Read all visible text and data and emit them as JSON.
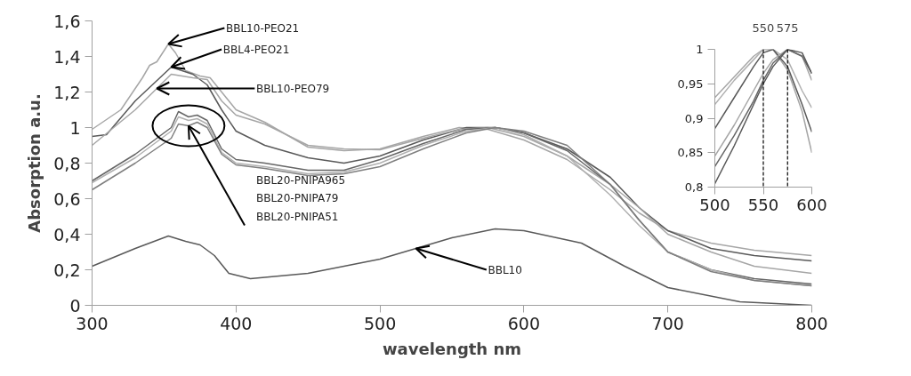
{
  "chart_data": [
    {
      "type": "line",
      "xlabel": "wavelength nm",
      "ylabel": "Absorption a.u.",
      "xlim": [
        300,
        800
      ],
      "ylim": [
        0,
        1.6
      ],
      "xticks": [
        300,
        400,
        500,
        600,
        700,
        800
      ],
      "yticks": [
        {
          "value": 0,
          "label": "0"
        },
        {
          "value": 0.2,
          "label": "0,2"
        },
        {
          "value": 0.4,
          "label": "0,4"
        },
        {
          "value": 0.6,
          "label": "0,6"
        },
        {
          "value": 0.8,
          "label": "0,8"
        },
        {
          "value": 1,
          "label": "1"
        },
        {
          "value": 1.2,
          "label": "1,2"
        },
        {
          "value": 1.4,
          "label": "1,4"
        },
        {
          "value": 1.6,
          "label": "1,6"
        }
      ],
      "grid": false,
      "marker": "none",
      "line_style": "solid",
      "series": [
        {
          "color": "#a6a6a6",
          "x": [
            300,
            320,
            335,
            340,
            345,
            353,
            358,
            365,
            375,
            382,
            390,
            400,
            420,
            450,
            475,
            500,
            530,
            555,
            575,
            600,
            630,
            660,
            680,
            700,
            730,
            760,
            800
          ],
          "values": [
            0.99,
            1.1,
            1.28,
            1.35,
            1.37,
            1.47,
            1.42,
            1.32,
            1.29,
            1.28,
            1.2,
            1.1,
            1.03,
            0.89,
            0.87,
            0.88,
            0.95,
            1.0,
            0.99,
            0.93,
            0.82,
            0.65,
            0.52,
            0.42,
            0.35,
            0.31,
            0.28
          ]
        },
        {
          "color": "#595959",
          "x": [
            300,
            310,
            330,
            355,
            370,
            380,
            390,
            400,
            420,
            450,
            475,
            500,
            530,
            560,
            580,
            600,
            630,
            660,
            680,
            700,
            730,
            760,
            800
          ],
          "values": [
            0.95,
            0.96,
            1.15,
            1.34,
            1.3,
            1.24,
            1.1,
            0.98,
            0.9,
            0.83,
            0.8,
            0.84,
            0.93,
            1.0,
            1.0,
            0.97,
            0.88,
            0.72,
            0.55,
            0.42,
            0.32,
            0.28,
            0.25
          ]
        },
        {
          "color": "#a6a6a6",
          "x": [
            300,
            330,
            355,
            370,
            380,
            390,
            400,
            420,
            450,
            475,
            500,
            530,
            555,
            575,
            600,
            630,
            660,
            680,
            700,
            730,
            760,
            800
          ],
          "values": [
            0.9,
            1.1,
            1.3,
            1.28,
            1.27,
            1.15,
            1.07,
            1.02,
            0.9,
            0.88,
            0.875,
            0.94,
            0.99,
            1.0,
            0.95,
            0.84,
            0.68,
            0.55,
            0.4,
            0.3,
            0.22,
            0.18
          ]
        },
        {
          "color": "#666666",
          "x": [
            300,
            330,
            355,
            360,
            367,
            373,
            380,
            390,
            400,
            410,
            420,
            450,
            475,
            500,
            530,
            560,
            580,
            600,
            630,
            660,
            680,
            700,
            730,
            760,
            800
          ],
          "values": [
            0.7,
            0.85,
            1.0,
            1.09,
            1.06,
            1.07,
            1.04,
            0.88,
            0.82,
            0.81,
            0.8,
            0.76,
            0.76,
            0.82,
            0.91,
            0.99,
            1.0,
            0.97,
            0.87,
            0.68,
            0.48,
            0.3,
            0.2,
            0.15,
            0.12
          ]
        },
        {
          "color": "#b0b0b0",
          "x": [
            300,
            330,
            355,
            360,
            367,
            373,
            380,
            390,
            400,
            410,
            420,
            450,
            475,
            500,
            530,
            560,
            580,
            600,
            630,
            660,
            680,
            700,
            730,
            760,
            800
          ],
          "values": [
            0.69,
            0.83,
            0.98,
            1.06,
            1.04,
            1.05,
            1.02,
            0.86,
            0.8,
            0.79,
            0.78,
            0.74,
            0.75,
            0.8,
            0.9,
            0.98,
            1.0,
            0.96,
            0.84,
            0.62,
            0.45,
            0.3,
            0.2,
            0.14,
            0.11
          ]
        },
        {
          "color": "#7f7f7f",
          "x": [
            300,
            330,
            355,
            360,
            367,
            373,
            380,
            390,
            400,
            410,
            420,
            450,
            475,
            500,
            530,
            560,
            580,
            600,
            630,
            660,
            680,
            700,
            730,
            760,
            800
          ],
          "values": [
            0.65,
            0.8,
            0.94,
            1.02,
            1.01,
            1.03,
            1.0,
            0.85,
            0.79,
            0.78,
            0.77,
            0.73,
            0.74,
            0.78,
            0.88,
            0.97,
            1.0,
            0.98,
            0.9,
            0.68,
            0.48,
            0.3,
            0.19,
            0.14,
            0.11
          ]
        },
        {
          "color": "#595959",
          "x": [
            300,
            330,
            353,
            365,
            375,
            385,
            395,
            410,
            450,
            500,
            550,
            580,
            600,
            640,
            670,
            700,
            750,
            800
          ],
          "values": [
            0.22,
            0.32,
            0.39,
            0.36,
            0.34,
            0.28,
            0.18,
            0.15,
            0.18,
            0.26,
            0.38,
            0.43,
            0.42,
            0.35,
            0.22,
            0.1,
            0.02,
            0.0
          ]
        }
      ],
      "annotations": [
        {
          "text": "BBL10-PEO21",
          "x": 353,
          "y": 1.47
        },
        {
          "text": "BBL4-PEO21",
          "x": 355,
          "y": 1.34
        },
        {
          "text": "BBL10-PEO79",
          "x": 345,
          "y": 1.22
        },
        {
          "text": "BBL20-PNIPA965\nBBL20-PNIPA79\nBBL20-PNIPA51",
          "x": 367,
          "y": 1.01
        },
        {
          "text": "BBL10",
          "x": 525,
          "y": 0.32
        }
      ]
    },
    {
      "type": "line",
      "xlim": [
        500,
        600
      ],
      "ylim": [
        0.8,
        1
      ],
      "xticks": [
        500,
        550,
        600
      ],
      "yticks": [
        {
          "value": 0.8,
          "label": "0,8"
        },
        {
          "value": 0.85,
          "label": "0,85"
        },
        {
          "value": 0.9,
          "label": "0,9"
        },
        {
          "value": 0.95,
          "label": "0,95"
        },
        {
          "value": 1,
          "label": "1"
        }
      ],
      "grid": false,
      "marker": "none",
      "line_style": "solid",
      "ref_lines": [
        {
          "axis": "x",
          "value": 550,
          "label": "550",
          "line_style": "dashed",
          "color": "#000000"
        },
        {
          "axis": "x",
          "value": 575,
          "label": "575",
          "line_style": "dashed",
          "color": "#000000"
        }
      ],
      "series": [
        {
          "color": "#a6a6a6",
          "x": [
            500,
            520,
            540,
            550,
            560,
            575,
            590,
            600
          ],
          "values": [
            0.93,
            0.96,
            0.99,
            1.0,
            1.0,
            0.97,
            0.91,
            0.85
          ]
        },
        {
          "color": "#b0b0b0",
          "x": [
            500,
            520,
            540,
            550,
            560,
            575,
            590,
            600
          ],
          "values": [
            0.92,
            0.955,
            0.985,
            1.0,
            1.0,
            0.985,
            0.94,
            0.915
          ]
        },
        {
          "color": "#595959",
          "x": [
            500,
            520,
            540,
            550,
            560,
            575,
            590,
            600
          ],
          "values": [
            0.885,
            0.93,
            0.975,
            0.995,
            1.0,
            0.975,
            0.92,
            0.88
          ]
        },
        {
          "color": "#a6a6a6",
          "x": [
            500,
            520,
            540,
            550,
            560,
            575,
            590,
            600
          ],
          "values": [
            0.845,
            0.89,
            0.94,
            0.965,
            0.985,
            1.0,
            0.99,
            0.955
          ]
        },
        {
          "color": "#666666",
          "x": [
            500,
            520,
            540,
            550,
            560,
            575,
            590,
            600
          ],
          "values": [
            0.83,
            0.875,
            0.925,
            0.955,
            0.98,
            1.0,
            0.99,
            0.965
          ]
        },
        {
          "color": "#595959",
          "x": [
            500,
            520,
            540,
            550,
            560,
            575,
            590,
            600
          ],
          "values": [
            0.805,
            0.86,
            0.92,
            0.95,
            0.975,
            1.0,
            0.995,
            0.965
          ]
        }
      ]
    }
  ]
}
